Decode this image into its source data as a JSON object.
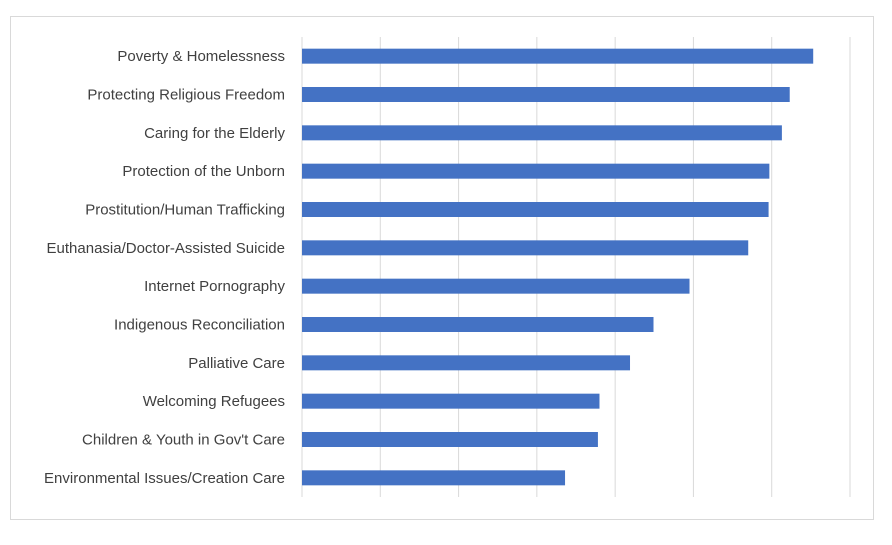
{
  "chart_data": {
    "type": "bar",
    "orientation": "horizontal",
    "title": "",
    "xlabel": "",
    "ylabel": "",
    "categories": [
      "Poverty & Homelessness",
      "Protecting Religious Freedom",
      "Caring for the Elderly",
      "Protection of the Unborn",
      "Prostitution/Human Trafficking",
      "Euthanasia/Doctor-Assisted Suicide",
      "Internet Pornography",
      "Indigenous Reconciliation",
      "Palliative Care",
      "Welcoming Refugees",
      "Children & Youth in Gov't Care",
      "Environmental Issues/Creation Care"
    ],
    "values": [
      6.53,
      6.23,
      6.13,
      5.97,
      5.96,
      5.7,
      4.95,
      4.49,
      4.19,
      3.8,
      3.78,
      3.36
    ],
    "xlim": [
      0,
      7
    ],
    "gridlines": "vertical",
    "tick_labels_shown": false,
    "legend": "none",
    "bar_color": "#4472C4",
    "gridline_color": "#d9d9d9"
  }
}
